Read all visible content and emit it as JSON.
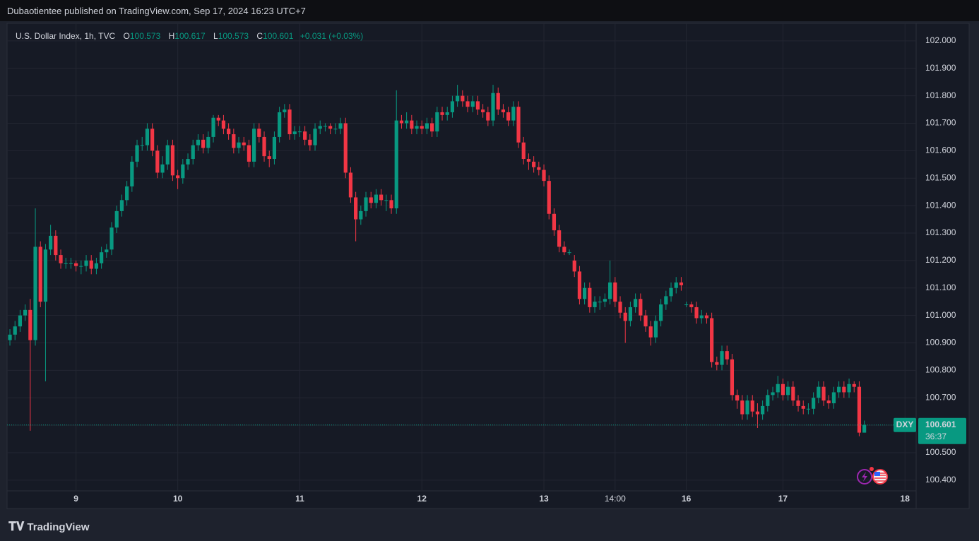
{
  "header": "Dubaotientee published on TradingView.com, Sep 17, 2024 16:23 UTC+7",
  "brand": "TradingView",
  "chart_data": {
    "type": "candlestick",
    "title": "U.S. Dollar Index, 1h, TVC",
    "ohlc_labels": [
      "O",
      "H",
      "L",
      "C"
    ],
    "change": "+0.031 (+0.03%)",
    "symbol": "DXY",
    "countdown": "36:37",
    "up_color": "#089981",
    "down_color": "#f23645",
    "grid": true,
    "xlim": [
      -0.56,
      178.19
    ],
    "ylim": [
      100.361,
      102.064
    ],
    "xticks": [
      {
        "value": 13,
        "label": "9"
      },
      {
        "value": 33,
        "label": "10"
      },
      {
        "value": 57,
        "label": "11"
      },
      {
        "value": 81,
        "label": "12"
      },
      {
        "value": 105,
        "label": "13"
      },
      {
        "value": 119,
        "label": "14:00"
      },
      {
        "value": 133,
        "label": "16"
      },
      {
        "value": 152,
        "label": "17"
      },
      {
        "value": 176,
        "label": "18"
      }
    ],
    "yticks": [
      {
        "value": 100.4,
        "label": "100.400"
      },
      {
        "value": 100.5,
        "label": "100.500"
      },
      {
        "value": 100.6,
        "label": "100.600"
      },
      {
        "value": 100.7,
        "label": "100.700"
      },
      {
        "value": 100.8,
        "label": "100.800"
      },
      {
        "value": 100.9,
        "label": "100.900"
      },
      {
        "value": 101,
        "label": "101.000"
      },
      {
        "value": 101.1,
        "label": "101.100"
      },
      {
        "value": 101.2,
        "label": "101.200"
      },
      {
        "value": 101.3,
        "label": "101.300"
      },
      {
        "value": 101.4,
        "label": "101.400"
      },
      {
        "value": 101.5,
        "label": "101.500"
      },
      {
        "value": 101.6,
        "label": "101.600"
      },
      {
        "value": 101.7,
        "label": "101.700"
      },
      {
        "value": 101.8,
        "label": "101.800"
      },
      {
        "value": 101.9,
        "label": "101.900"
      },
      {
        "value": 102,
        "label": "102.000"
      }
    ],
    "ohlc": [
      [
        100.91,
        100.95,
        100.89,
        100.93
      ],
      [
        100.93,
        100.98,
        100.91,
        100.96
      ],
      [
        100.96,
        101.02,
        100.94,
        101.0
      ],
      [
        101.0,
        101.04,
        100.98,
        101.02
      ],
      [
        101.02,
        101.06,
        100.58,
        100.91
      ],
      [
        100.91,
        101.39,
        100.89,
        101.25
      ],
      [
        101.25,
        101.27,
        101.03,
        101.05
      ],
      [
        101.05,
        101.26,
        100.76,
        101.24
      ],
      [
        101.24,
        101.33,
        101.22,
        101.29
      ],
      [
        101.29,
        101.31,
        101.2,
        101.22
      ],
      [
        101.22,
        101.24,
        101.17,
        101.19
      ],
      [
        101.19,
        101.21,
        101.17,
        101.19
      ],
      [
        101.19,
        101.21,
        101.17,
        101.19
      ],
      [
        101.19,
        101.2,
        101.16,
        101.18
      ],
      [
        101.18,
        101.2,
        101.15,
        101.18
      ],
      [
        101.18,
        101.22,
        101.16,
        101.2
      ],
      [
        101.2,
        101.22,
        101.15,
        101.17
      ],
      [
        101.17,
        101.21,
        101.15,
        101.19
      ],
      [
        101.19,
        101.25,
        101.17,
        101.23
      ],
      [
        101.23,
        101.26,
        101.21,
        101.24
      ],
      [
        101.24,
        101.34,
        101.22,
        101.32
      ],
      [
        101.32,
        101.4,
        101.3,
        101.38
      ],
      [
        101.38,
        101.44,
        101.36,
        101.42
      ],
      [
        101.42,
        101.49,
        101.4,
        101.47
      ],
      [
        101.47,
        101.58,
        101.45,
        101.56
      ],
      [
        101.56,
        101.64,
        101.54,
        101.62
      ],
      [
        101.62,
        101.65,
        101.6,
        101.62
      ],
      [
        101.62,
        101.7,
        101.6,
        101.68
      ],
      [
        101.68,
        101.7,
        101.58,
        101.6
      ],
      [
        101.6,
        101.62,
        101.5,
        101.52
      ],
      [
        101.52,
        101.58,
        101.5,
        101.55
      ],
      [
        101.55,
        101.64,
        101.53,
        101.62
      ],
      [
        101.62,
        101.64,
        101.49,
        101.51
      ],
      [
        101.51,
        101.53,
        101.46,
        101.5
      ],
      [
        101.5,
        101.57,
        101.48,
        101.55
      ],
      [
        101.55,
        101.59,
        101.53,
        101.57
      ],
      [
        101.57,
        101.64,
        101.55,
        101.62
      ],
      [
        101.62,
        101.66,
        101.6,
        101.64
      ],
      [
        101.64,
        101.66,
        101.59,
        101.61
      ],
      [
        101.61,
        101.67,
        101.59,
        101.65
      ],
      [
        101.65,
        101.73,
        101.63,
        101.72
      ],
      [
        101.72,
        101.73,
        101.69,
        101.71
      ],
      [
        101.71,
        101.73,
        101.66,
        101.68
      ],
      [
        101.68,
        101.7,
        101.64,
        101.66
      ],
      [
        101.66,
        101.68,
        101.59,
        101.61
      ],
      [
        101.61,
        101.65,
        101.59,
        101.63
      ],
      [
        101.63,
        101.65,
        101.6,
        101.62
      ],
      [
        101.62,
        101.64,
        101.54,
        101.56
      ],
      [
        101.56,
        101.7,
        101.54,
        101.68
      ],
      [
        101.68,
        101.7,
        101.63,
        101.65
      ],
      [
        101.65,
        101.67,
        101.56,
        101.58
      ],
      [
        101.58,
        101.6,
        101.54,
        101.57
      ],
      [
        101.57,
        101.67,
        101.55,
        101.65
      ],
      [
        101.65,
        101.76,
        101.63,
        101.74
      ],
      [
        101.74,
        101.77,
        101.72,
        101.75
      ],
      [
        101.75,
        101.77,
        101.64,
        101.66
      ],
      [
        101.66,
        101.69,
        101.64,
        101.67
      ],
      [
        101.67,
        101.69,
        101.65,
        101.67
      ],
      [
        101.67,
        101.69,
        101.62,
        101.64
      ],
      [
        101.64,
        101.66,
        101.6,
        101.62
      ],
      [
        101.62,
        101.7,
        101.6,
        101.68
      ],
      [
        101.68,
        101.71,
        101.66,
        101.69
      ],
      [
        101.69,
        101.7,
        101.67,
        101.69
      ],
      [
        101.69,
        101.7,
        101.66,
        101.68
      ],
      [
        101.68,
        101.7,
        101.66,
        101.68
      ],
      [
        101.68,
        101.72,
        101.66,
        101.7
      ],
      [
        101.7,
        101.72,
        101.5,
        101.52
      ],
      [
        101.52,
        101.54,
        101.41,
        101.43
      ],
      [
        101.43,
        101.45,
        101.27,
        101.35
      ],
      [
        101.35,
        101.4,
        101.33,
        101.38
      ],
      [
        101.38,
        101.45,
        101.36,
        101.43
      ],
      [
        101.43,
        101.45,
        101.39,
        101.41
      ],
      [
        101.41,
        101.46,
        101.39,
        101.44
      ],
      [
        101.44,
        101.46,
        101.4,
        101.42
      ],
      [
        101.42,
        101.44,
        101.38,
        101.42
      ],
      [
        101.42,
        101.44,
        101.37,
        101.39
      ],
      [
        101.39,
        101.82,
        101.37,
        101.71
      ],
      [
        101.71,
        101.73,
        101.68,
        101.7
      ],
      [
        101.7,
        101.74,
        101.68,
        101.71
      ],
      [
        101.71,
        101.73,
        101.66,
        101.68
      ],
      [
        101.68,
        101.71,
        101.66,
        101.69
      ],
      [
        101.69,
        101.71,
        101.66,
        101.68
      ],
      [
        101.68,
        101.72,
        101.66,
        101.7
      ],
      [
        101.7,
        101.72,
        101.65,
        101.67
      ],
      [
        101.67,
        101.76,
        101.65,
        101.74
      ],
      [
        101.74,
        101.76,
        101.71,
        101.73
      ],
      [
        101.73,
        101.76,
        101.71,
        101.74
      ],
      [
        101.74,
        101.8,
        101.72,
        101.78
      ],
      [
        101.78,
        101.84,
        101.76,
        101.8
      ],
      [
        101.8,
        101.82,
        101.76,
        101.78
      ],
      [
        101.78,
        101.8,
        101.74,
        101.76
      ],
      [
        101.76,
        101.8,
        101.74,
        101.78
      ],
      [
        101.78,
        101.8,
        101.73,
        101.75
      ],
      [
        101.75,
        101.77,
        101.72,
        101.74
      ],
      [
        101.74,
        101.76,
        101.69,
        101.71
      ],
      [
        101.71,
        101.84,
        101.69,
        101.81
      ],
      [
        101.81,
        101.83,
        101.73,
        101.75
      ],
      [
        101.75,
        101.77,
        101.72,
        101.74
      ],
      [
        101.74,
        101.76,
        101.69,
        101.71
      ],
      [
        101.71,
        101.78,
        101.69,
        101.76
      ],
      [
        101.76,
        101.78,
        101.61,
        101.63
      ],
      [
        101.63,
        101.65,
        101.55,
        101.57
      ],
      [
        101.57,
        101.59,
        101.53,
        101.56
      ],
      [
        101.56,
        101.58,
        101.52,
        101.54
      ],
      [
        101.54,
        101.56,
        101.51,
        101.53
      ],
      [
        101.53,
        101.55,
        101.47,
        101.49
      ],
      [
        101.49,
        101.51,
        101.35,
        101.37
      ],
      [
        101.37,
        101.39,
        101.29,
        101.31
      ],
      [
        101.31,
        101.33,
        101.23,
        101.25
      ],
      [
        101.25,
        101.27,
        101.22,
        101.23
      ],
      [
        101.23,
        101.24,
        101.22,
        101.23
      ],
      [
        101.2,
        101.22,
        101.14,
        101.16
      ],
      [
        101.16,
        101.18,
        101.04,
        101.06
      ],
      [
        101.06,
        101.12,
        101.04,
        101.1
      ],
      [
        101.1,
        101.12,
        101.01,
        101.03
      ],
      [
        101.03,
        101.07,
        101.01,
        101.05
      ],
      [
        101.05,
        101.07,
        101.02,
        101.05
      ],
      [
        101.05,
        101.08,
        101.03,
        101.06
      ],
      [
        101.06,
        101.2,
        101.04,
        101.12
      ],
      [
        101.12,
        101.14,
        101.03,
        101.05
      ],
      [
        101.05,
        101.07,
        100.99,
        101.01
      ],
      [
        101.01,
        101.03,
        100.9,
        100.98
      ],
      [
        100.98,
        101.05,
        100.96,
        101.03
      ],
      [
        101.03,
        101.08,
        101.01,
        101.06
      ],
      [
        101.06,
        101.08,
        100.98,
        101.0
      ],
      [
        101.0,
        101.02,
        100.94,
        100.96
      ],
      [
        100.96,
        100.98,
        100.89,
        100.92
      ],
      [
        100.92,
        101.0,
        100.9,
        100.98
      ],
      [
        100.98,
        101.06,
        100.96,
        101.04
      ],
      [
        101.04,
        101.09,
        101.02,
        101.07
      ],
      [
        101.07,
        101.12,
        101.05,
        101.1
      ],
      [
        101.1,
        101.14,
        101.08,
        101.12
      ],
      [
        101.12,
        101.14,
        101.09,
        101.11
      ],
      [
        101.04,
        101.05,
        101.03,
        101.04
      ],
      [
        101.04,
        101.05,
        101.01,
        101.03
      ],
      [
        101.03,
        101.05,
        100.97,
        100.99
      ],
      [
        100.99,
        101.02,
        100.97,
        101.0
      ],
      [
        101.0,
        101.01,
        100.97,
        100.99
      ],
      [
        100.99,
        101.01,
        100.81,
        100.83
      ],
      [
        100.83,
        100.85,
        100.8,
        100.82
      ],
      [
        100.82,
        100.89,
        100.8,
        100.87
      ],
      [
        100.87,
        100.89,
        100.82,
        100.84
      ],
      [
        100.84,
        100.86,
        100.69,
        100.71
      ],
      [
        100.71,
        100.73,
        100.66,
        100.69
      ],
      [
        100.69,
        100.71,
        100.62,
        100.64
      ],
      [
        100.64,
        100.71,
        100.62,
        100.69
      ],
      [
        100.69,
        100.71,
        100.63,
        100.65
      ],
      [
        100.65,
        100.68,
        100.59,
        100.64
      ],
      [
        100.64,
        100.69,
        100.62,
        100.67
      ],
      [
        100.67,
        100.73,
        100.65,
        100.71
      ],
      [
        100.71,
        100.74,
        100.69,
        100.72
      ],
      [
        100.72,
        100.78,
        100.7,
        100.75
      ],
      [
        100.75,
        100.77,
        100.69,
        100.71
      ],
      [
        100.71,
        100.76,
        100.69,
        100.74
      ],
      [
        100.74,
        100.76,
        100.67,
        100.69
      ],
      [
        100.69,
        100.71,
        100.65,
        100.67
      ],
      [
        100.67,
        100.69,
        100.64,
        100.66
      ],
      [
        100.66,
        100.68,
        100.64,
        100.66
      ],
      [
        100.66,
        100.72,
        100.64,
        100.7
      ],
      [
        100.7,
        100.76,
        100.68,
        100.74
      ],
      [
        100.74,
        100.76,
        100.67,
        100.69
      ],
      [
        100.69,
        100.71,
        100.66,
        100.68
      ],
      [
        100.68,
        100.74,
        100.66,
        100.72
      ],
      [
        100.72,
        100.76,
        100.7,
        100.74
      ],
      [
        100.74,
        100.76,
        100.7,
        100.72
      ],
      [
        100.72,
        100.77,
        100.7,
        100.75
      ],
      [
        100.75,
        100.76,
        100.72,
        100.74
      ],
      [
        100.74,
        100.76,
        100.56,
        100.573
      ],
      [
        100.573,
        100.617,
        100.573,
        100.601
      ]
    ]
  }
}
